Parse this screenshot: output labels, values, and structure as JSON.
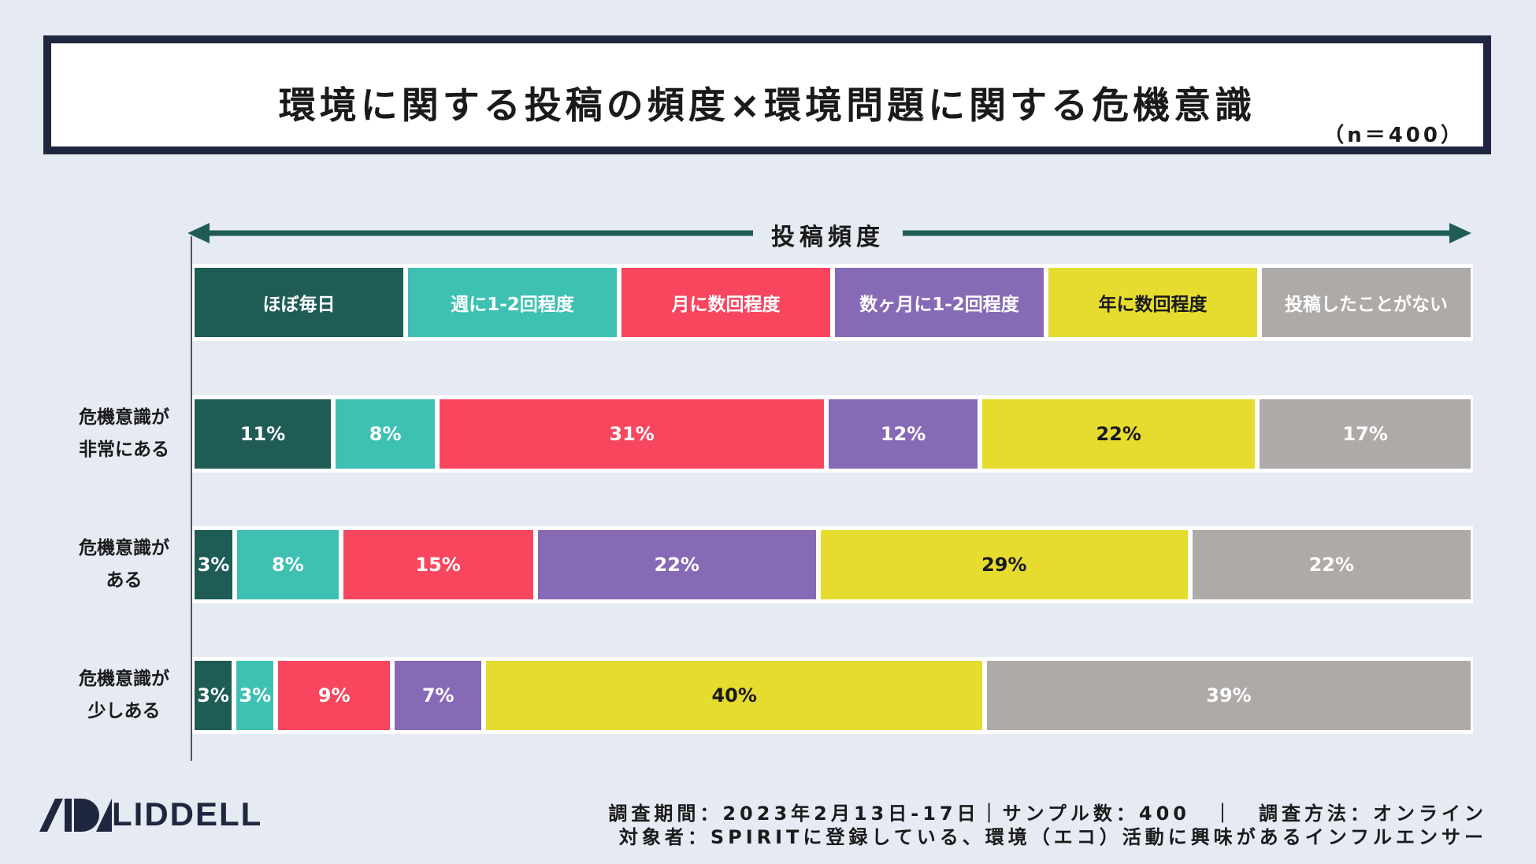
{
  "title": "環境に関する投稿の頻度×環境問題に関する危機意識",
  "sample_note": "（n＝400）",
  "colors": {
    "ほぼ毎日": "#1f5c56",
    "週に1-2回程度": "#3ec0b2",
    "月に数回程度": "#f8465f",
    "数ヶ月に1-2回程度": "#876ab5",
    "年に数回程度": "#e6dc2f",
    "投稿したことがない": "#aeaaa8"
  },
  "chart_data": {
    "type": "bar",
    "orientation": "horizontal",
    "stacked": true,
    "x_axis_label": "投稿頻度",
    "legend_placement": "top",
    "categories": [
      "ほぼ毎日",
      "週に1-2回程度",
      "月に数回程度",
      "数ヶ月に1-2回程度",
      "年に数回程度",
      "投稿したことがない"
    ],
    "series": [
      {
        "name": "危機意識が非常にある",
        "label_lines": [
          "危機意識が",
          "非常にある"
        ],
        "values": [
          11,
          8,
          31,
          12,
          22,
          17
        ]
      },
      {
        "name": "危機意識がある",
        "label_lines": [
          "危機意識が",
          "ある"
        ],
        "values": [
          3,
          8,
          15,
          22,
          29,
          22
        ]
      },
      {
        "name": "危機意識が少しある",
        "label_lines": [
          "危機意識が",
          "少しある"
        ],
        "values": [
          3,
          3,
          9,
          7,
          40,
          39
        ]
      }
    ],
    "unit": "%"
  },
  "footer": {
    "line1": "調査期間：2023年2月13日-17日｜サンプル数：400　｜　調査方法：オンライン",
    "line2": "対象者：SPIRITに登録している、環境（エコ）活動に興味があるインフルエンサー"
  },
  "logo_text": "LIDDELL"
}
